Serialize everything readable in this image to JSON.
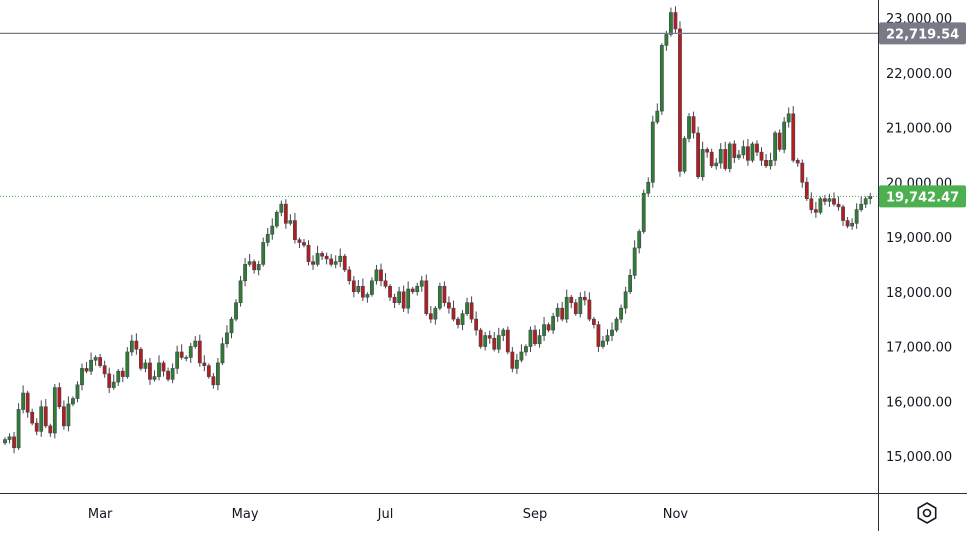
{
  "colors": {
    "up": "#26a69a",
    "down": "#ef5350",
    "candle_border": "#434651",
    "axis_line": "#2a2e39",
    "hline": "#787b86",
    "last_price_line": "#4caf50",
    "last_price_badge": "#4caf50",
    "hline_badge": "#787b86",
    "up_body": "#2e7d32",
    "down_body": "#b71c1c"
  },
  "chart_data": {
    "type": "candlestick",
    "ylim": [
      14300,
      23250
    ],
    "y_ticks": [
      15000,
      16000,
      17000,
      18000,
      19000,
      20000,
      21000,
      22000,
      23000
    ],
    "y_tick_labels": [
      "15,000.00",
      "16,000.00",
      "17,000.00",
      "18,000.00",
      "19,000.00",
      "20,000.00",
      "21,000.00",
      "22,000.00",
      "23,000.00"
    ],
    "x_ticks": [
      {
        "label": "Mar",
        "index": 21
      },
      {
        "label": "May",
        "index": 53
      },
      {
        "label": "Jul",
        "index": 84
      },
      {
        "label": "Sep",
        "index": 117
      },
      {
        "label": "Nov",
        "index": 148
      }
    ],
    "horizontal_line": {
      "value": 22719.54,
      "label": "22,719.54"
    },
    "last_price": {
      "value": 19742.47,
      "label": "19,742.47"
    },
    "close": [
      15300,
      15350,
      15150,
      15850,
      16150,
      15800,
      15600,
      15450,
      15900,
      15550,
      15420,
      16250,
      15900,
      15550,
      15950,
      16050,
      16300,
      16600,
      16550,
      16750,
      16800,
      16650,
      16500,
      16250,
      16350,
      16550,
      16450,
      16900,
      17100,
      16950,
      16600,
      16700,
      16400,
      16450,
      16700,
      16550,
      16400,
      16600,
      16900,
      16800,
      16800,
      17000,
      17100,
      16700,
      16650,
      16450,
      16300,
      16700,
      17050,
      17250,
      17500,
      17800,
      18200,
      18500,
      18550,
      18400,
      18500,
      18900,
      19050,
      19200,
      19450,
      19600,
      19250,
      19300,
      18950,
      18900,
      18850,
      18550,
      18500,
      18700,
      18650,
      18600,
      18500,
      18550,
      18650,
      18400,
      18200,
      18000,
      18100,
      17900,
      17950,
      18200,
      18400,
      18200,
      18100,
      17900,
      17800,
      18000,
      17700,
      18050,
      18000,
      18100,
      18200,
      17600,
      17500,
      17700,
      18100,
      17800,
      17700,
      17500,
      17400,
      17600,
      17800,
      17500,
      17300,
      17000,
      17200,
      17150,
      16950,
      17200,
      17300,
      16900,
      16600,
      16750,
      16900,
      17000,
      17300,
      17050,
      17200,
      17400,
      17300,
      17550,
      17700,
      17500,
      17900,
      17800,
      17600,
      17900,
      17850,
      17500,
      17400,
      17000,
      17100,
      17200,
      17300,
      17500,
      17700,
      18000,
      18300,
      18800,
      19100,
      19800,
      20000,
      21100,
      21300,
      22500,
      22700,
      23100,
      22800,
      20200,
      20800,
      21200,
      20900,
      20100,
      20600,
      20550,
      20300,
      20350,
      20600,
      20250,
      20700,
      20450,
      20500,
      20650,
      20400,
      20700,
      20550,
      20400,
      20300,
      20400,
      20900,
      20600,
      21100,
      21250,
      20400,
      20350,
      20000,
      19700,
      19500,
      19450,
      19700,
      19650,
      19700,
      19600,
      19550,
      19300,
      19200,
      19250,
      19500,
      19600,
      19700,
      19742
    ]
  },
  "settings": {
    "icon": "gear-icon"
  }
}
